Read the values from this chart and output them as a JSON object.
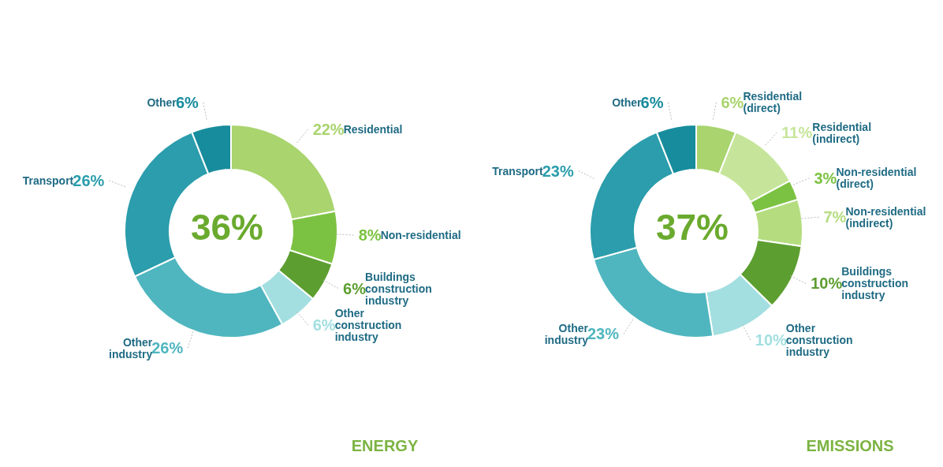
{
  "chart_data": [
    {
      "type": "donut",
      "title": "ENERGY",
      "categories": [
        "Residential",
        "Non-residential",
        "Buildings construction industry",
        "Other construction industry",
        "Other industry",
        "Transport",
        "Other"
      ],
      "values": [
        22,
        8,
        6,
        6,
        26,
        26,
        6
      ],
      "value_labels": [
        "22%",
        "8%",
        "6%",
        "6%",
        "26%",
        "26%",
        "6%"
      ],
      "colors": [
        "#a9d46e",
        "#7cc242",
        "#5c9e30",
        "#a3dfe0",
        "#4fb6bf",
        "#2b9dac",
        "#178c9c"
      ],
      "annotations": [
        "36%"
      ],
      "legend": false
    },
    {
      "type": "donut",
      "title": "EMISSIONS",
      "categories": [
        "Residential (direct)",
        "Residential (indirect)",
        "Non-residential (direct)",
        "Non-residential (indirect)",
        "Buildings construction industry",
        "Other construction industry",
        "Other industry",
        "Transport",
        "Other"
      ],
      "values": [
        6,
        11,
        3,
        7,
        10,
        10,
        23,
        23,
        6
      ],
      "value_labels": [
        "6%",
        "11%",
        "3%",
        "7%",
        "10%",
        "10%",
        "23%",
        "23%",
        "6%"
      ],
      "colors": [
        "#a9d46e",
        "#c6e59a",
        "#7cc242",
        "#b5dd80",
        "#5c9e30",
        "#a3dfe0",
        "#4fb6bf",
        "#2b9dac",
        "#178c9c"
      ],
      "annotations": [
        "37%"
      ],
      "legend": false
    }
  ]
}
